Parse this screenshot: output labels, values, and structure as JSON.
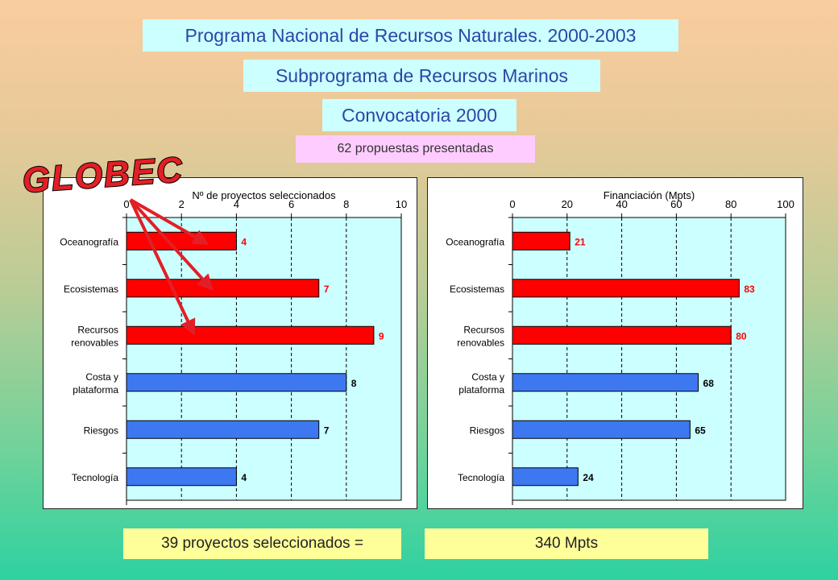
{
  "header": {
    "title": "Programa Nacional de Recursos Naturales. 2000-2003",
    "subprogram": "Subprograma de Recursos Marinos",
    "call": "Convocatoria 2000",
    "proposals": "62 propuestas presentadas"
  },
  "overlay": {
    "label": "GLOBEC",
    "label_color": "#e21f26",
    "arrow_color": "#e21f26"
  },
  "footer": {
    "selected": "39 proyectos seleccionados =",
    "funding": "340 Mpts"
  },
  "colors": {
    "highlight_bar": "#ff0000",
    "other_bar": "#3d78f0",
    "plot_bg": "#ccffff",
    "label_red": "#ff0000",
    "label_dark": "#000000"
  },
  "chart_data": [
    {
      "type": "bar",
      "orientation": "horizontal",
      "title": "Nº de proyectos seleccionados",
      "categories": [
        "Oceanografía",
        "Ecosistemas",
        "Recursos renovables",
        "Costa y plataforma",
        "Riesgos",
        "Tecnología"
      ],
      "category_lines": [
        [
          "Oceanografía"
        ],
        [
          "Ecosistemas"
        ],
        [
          "Recursos",
          "renovables"
        ],
        [
          "Costa y",
          "plataforma"
        ],
        [
          "Riesgos"
        ],
        [
          "Tecnología"
        ]
      ],
      "values": [
        4,
        7,
        9,
        8,
        7,
        4
      ],
      "highlighted": [
        true,
        true,
        true,
        false,
        false,
        false
      ],
      "xlim": [
        0,
        10
      ],
      "xticks": [
        0,
        2,
        4,
        6,
        8,
        10
      ],
      "axis_position": "top",
      "grid": "vertical dashed"
    },
    {
      "type": "bar",
      "orientation": "horizontal",
      "title": "Financiación (Mpts)",
      "categories": [
        "Oceanografía",
        "Ecosistemas",
        "Recursos renovables",
        "Costa y plataforma",
        "Riesgos",
        "Tecnología"
      ],
      "category_lines": [
        [
          "Oceanografía"
        ],
        [
          "Ecosistemas"
        ],
        [
          "Recursos",
          "renovables"
        ],
        [
          "Costa y",
          "plataforma"
        ],
        [
          "Riesgos"
        ],
        [
          "Tecnología"
        ]
      ],
      "values": [
        21,
        83,
        80,
        68,
        65,
        24
      ],
      "highlighted": [
        true,
        true,
        true,
        false,
        false,
        false
      ],
      "xlim": [
        0,
        100
      ],
      "xticks": [
        0,
        20,
        40,
        60,
        80,
        100
      ],
      "axis_position": "top",
      "grid": "vertical dashed"
    }
  ]
}
